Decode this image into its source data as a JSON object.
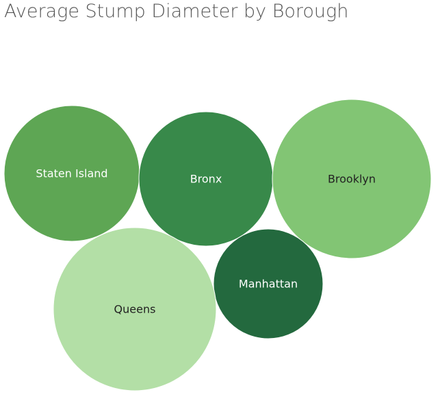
{
  "chart_data": {
    "type": "bubble",
    "title": "Average Stump Diameter by Borough",
    "categories": [
      "Staten Island",
      "Bronx",
      "Brooklyn",
      "Manhattan",
      "Queens"
    ],
    "colors": [
      "#5ea654",
      "#38894a",
      "#82c574",
      "#23693e",
      "#b3dfa6"
    ],
    "label_colors": [
      "#ffffff",
      "#ffffff",
      "#222222",
      "#ffffff",
      "#222222"
    ],
    "legend": "none"
  }
}
